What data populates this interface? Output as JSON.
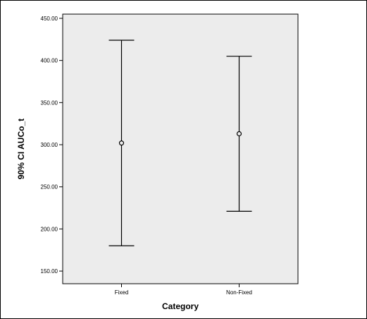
{
  "chart_data": {
    "type": "error-bar",
    "title": "",
    "xlabel": "Category",
    "ylabel": "90% CI AUCo_t",
    "ylim": [
      135,
      455
    ],
    "y_ticks": [
      150,
      200,
      250,
      300,
      350,
      400,
      450
    ],
    "y_tick_labels": [
      "150.00",
      "200.00",
      "250.00",
      "300.00",
      "350.00",
      "400.00",
      "450.00"
    ],
    "categories": [
      "Fixed",
      "Non-Fixed"
    ],
    "series": [
      {
        "points": [
          {
            "category": "Fixed",
            "mean": 302,
            "lower": 180,
            "upper": 424
          },
          {
            "category": "Non-Fixed",
            "mean": 313,
            "lower": 221,
            "upper": 405
          }
        ]
      }
    ],
    "grid": false,
    "colors": {
      "plot_background": "#ececec",
      "line": "#000000"
    }
  }
}
